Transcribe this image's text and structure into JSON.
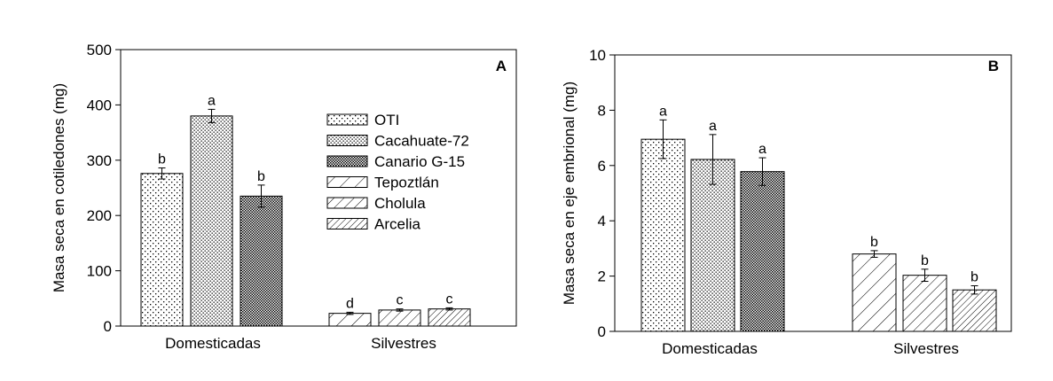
{
  "chart_data": [
    {
      "type": "bar",
      "panel_label": "A",
      "xlabel": "",
      "ylabel": "Masa seca en cotiledones (mg)",
      "ylim": [
        0,
        500
      ],
      "yticks": [
        0,
        100,
        200,
        300,
        400,
        500
      ],
      "groups": [
        "Domesticadas",
        "Silvestres"
      ],
      "legend": {
        "placement": "center",
        "entries": [
          {
            "name": "OTI",
            "pattern": "dots-sparse"
          },
          {
            "name": "Cacahuate-72",
            "pattern": "dots-medium"
          },
          {
            "name": "Canario G-15",
            "pattern": "dots-dense"
          },
          {
            "name": "Tepoztlán",
            "pattern": "hatch-wide"
          },
          {
            "name": "Cholula",
            "pattern": "hatch-medium"
          },
          {
            "name": "Arcelia",
            "pattern": "hatch-dense"
          }
        ]
      },
      "bars": [
        {
          "series": "OTI",
          "group": "Domesticadas",
          "value": 276,
          "error": 10,
          "letter": "b",
          "pattern": "dots-sparse"
        },
        {
          "series": "Cacahuate-72",
          "group": "Domesticadas",
          "value": 380,
          "error": 12,
          "letter": "a",
          "pattern": "dots-medium"
        },
        {
          "series": "Canario G-15",
          "group": "Domesticadas",
          "value": 235,
          "error": 20,
          "letter": "b",
          "pattern": "dots-dense"
        },
        {
          "series": "Tepoztlán",
          "group": "Silvestres",
          "value": 23,
          "error": 2,
          "letter": "d",
          "pattern": "hatch-wide"
        },
        {
          "series": "Cholula",
          "group": "Silvestres",
          "value": 29,
          "error": 2,
          "letter": "c",
          "pattern": "hatch-medium"
        },
        {
          "series": "Arcelia",
          "group": "Silvestres",
          "value": 31,
          "error": 2,
          "letter": "c",
          "pattern": "hatch-dense"
        }
      ]
    },
    {
      "type": "bar",
      "panel_label": "B",
      "xlabel": "",
      "ylabel": "Masa seca en eje embrional (mg)",
      "ylim": [
        0,
        10
      ],
      "yticks": [
        0,
        2,
        4,
        6,
        8,
        10
      ],
      "groups": [
        "Domesticadas",
        "Silvestres"
      ],
      "bars": [
        {
          "series": "OTI",
          "group": "Domesticadas",
          "value": 6.95,
          "error": 0.7,
          "letter": "a",
          "pattern": "dots-sparse"
        },
        {
          "series": "Cacahuate-72",
          "group": "Domesticadas",
          "value": 6.22,
          "error": 0.9,
          "letter": "a",
          "pattern": "dots-medium"
        },
        {
          "series": "Canario G-15",
          "group": "Domesticadas",
          "value": 5.78,
          "error": 0.5,
          "letter": "a",
          "pattern": "dots-dense"
        },
        {
          "series": "Tepoztlán",
          "group": "Silvestres",
          "value": 2.8,
          "error": 0.12,
          "letter": "b",
          "pattern": "hatch-wide"
        },
        {
          "series": "Cholula",
          "group": "Silvestres",
          "value": 2.03,
          "error": 0.22,
          "letter": "b",
          "pattern": "hatch-medium"
        },
        {
          "series": "Arcelia",
          "group": "Silvestres",
          "value": 1.5,
          "error": 0.15,
          "letter": "b",
          "pattern": "hatch-dense"
        }
      ]
    }
  ]
}
